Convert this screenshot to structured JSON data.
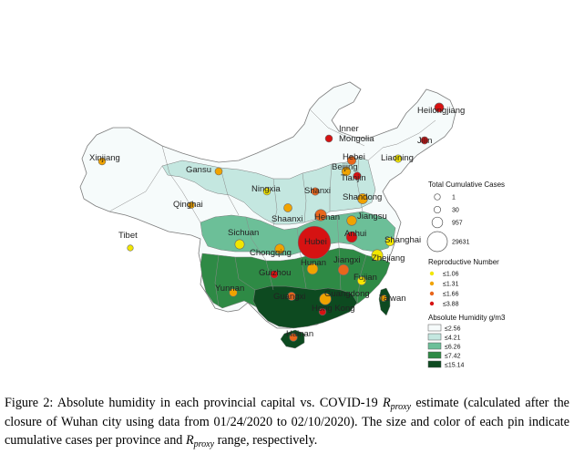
{
  "provinces": [
    {
      "name": "Heilongjiang",
      "cases": 480,
      "r": 3.5
    },
    {
      "name": "Inner Mongolia",
      "cases": 75,
      "r": 3.5
    },
    {
      "name": "Jilin",
      "cases": 93,
      "r": 3.5
    },
    {
      "name": "Liaoning",
      "cases": 122,
      "r": 1.0
    },
    {
      "name": "Xinjiang",
      "cases": 76,
      "r": 1.3
    },
    {
      "name": "Gansu",
      "cases": 91,
      "r": 1.3
    },
    {
      "name": "Ningxia",
      "cases": 75,
      "r": 1.0
    },
    {
      "name": "Beijing",
      "cases": 400,
      "r": 1.3
    },
    {
      "name": "Tianjin",
      "cases": 135,
      "r": 3.5
    },
    {
      "name": "Hebei",
      "cases": 318,
      "r": 1.5
    },
    {
      "name": "Shanxi",
      "cases": 133,
      "r": 1.5
    },
    {
      "name": "Shandong",
      "cases": 759,
      "r": 1.3
    },
    {
      "name": "Qinghai",
      "cases": 18,
      "r": 1.3
    },
    {
      "name": "Shaanxi",
      "cases": 245,
      "r": 1.3
    },
    {
      "name": "Henan",
      "cases": 1272,
      "r": 1.5
    },
    {
      "name": "Jiangsu",
      "cases": 631,
      "r": 1.3
    },
    {
      "name": "Tibet",
      "cases": 1,
      "r": 1.0
    },
    {
      "name": "Sichuan",
      "cases": 539,
      "r": 1.0
    },
    {
      "name": "Hubei",
      "cases": 29631,
      "r": 3.5
    },
    {
      "name": "Anhui",
      "cases": 990,
      "r": 3.5
    },
    {
      "name": "Shanghai",
      "cases": 338,
      "r": 1.0
    },
    {
      "name": "Chongqing",
      "cases": 576,
      "r": 1.3
    },
    {
      "name": "Zhejiang",
      "cases": 1205,
      "r": 1.0
    },
    {
      "name": "Hunan",
      "cases": 1018,
      "r": 1.3
    },
    {
      "name": "Jiangxi",
      "cases": 935,
      "r": 1.5
    },
    {
      "name": "Guizhou",
      "cases": 146,
      "r": 3.5
    },
    {
      "name": "Fujian",
      "cases": 296,
      "r": 1.0
    },
    {
      "name": "Yunnan",
      "cases": 174,
      "r": 1.3
    },
    {
      "name": "Guangxi",
      "cases": 252,
      "r": 1.5
    },
    {
      "name": "Guangdong",
      "cases": 1339,
      "r": 1.3
    },
    {
      "name": "Taiwan",
      "cases": 18,
      "r": 1.3
    },
    {
      "name": "Hong Kong",
      "cases": 56,
      "r": 3.5
    },
    {
      "name": "Hainan",
      "cases": 168,
      "r": 1.5
    }
  ],
  "legend_cases": {
    "title": "Total Cumulative Cases",
    "items": [
      {
        "label": "1",
        "value": 1
      },
      {
        "label": "30",
        "value": 30
      },
      {
        "label": "957",
        "value": 957
      },
      {
        "label": "29631",
        "value": 29631
      }
    ]
  },
  "legend_r": {
    "title": "Reproductive Number",
    "items": [
      {
        "label": "≤1.06",
        "color": "#f2e600"
      },
      {
        "label": "≤1.31",
        "color": "#f0a300"
      },
      {
        "label": "≤1.66",
        "color": "#e8661c"
      },
      {
        "label": "≤3.88",
        "color": "#d61212"
      }
    ]
  },
  "legend_humidity": {
    "title": "Absolute Humidity g/m3",
    "items": [
      {
        "label": "≤2.56",
        "color": "#f6fbfb"
      },
      {
        "label": "≤4.21",
        "color": "#c4e7e0"
      },
      {
        "label": "≤6.26",
        "color": "#6cbf98"
      },
      {
        "label": "≤7.42",
        "color": "#2e8a45"
      },
      {
        "label": "≤15.14",
        "color": "#0d4a20"
      }
    ]
  },
  "caption": {
    "part1": "Figure 2: Absolute humidity in each provincial capital vs. COVID-19 ",
    "r_main": "R",
    "r_sub": "proxy",
    "part2": " estimate (calculated after the closure of Wuhan city using data from 01/24/2020 to 02/10/2020). The size and color of each pin indicate cumulative cases per province and ",
    "part3": " range, respectively."
  }
}
